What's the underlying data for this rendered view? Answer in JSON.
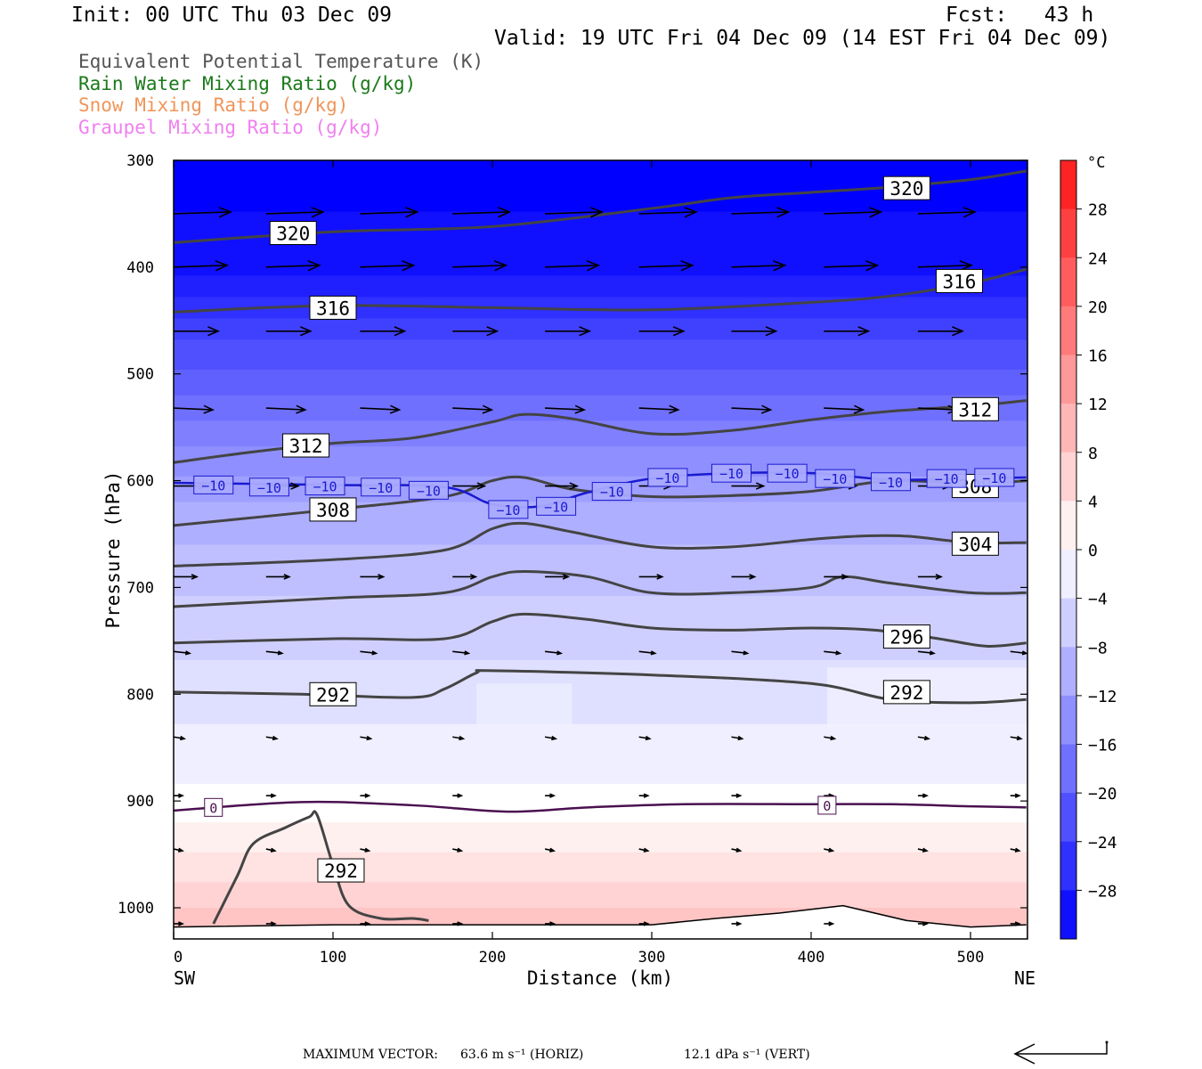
{
  "header": {
    "init": "Init: 00 UTC Thu 03 Dec 09",
    "fcst": "Fcst:   43 h",
    "valid": "Valid: 19 UTC Fri 04 Dec 09 (14 EST Fri 04 Dec 09)"
  },
  "legend": [
    {
      "label": "Equivalent Potential Temperature (K)",
      "color": "#555555"
    },
    {
      "label": "Rain Water Mixing Ratio (g/kg)",
      "color": "#1a7a1a"
    },
    {
      "label": "Snow Mixing Ratio (g/kg)",
      "color": "#f0955a"
    },
    {
      "label": "Graupel Mixing Ratio (g/kg)",
      "color": "#f080f0"
    }
  ],
  "footer": {
    "max_label": "MAXIMUM VECTOR:",
    "horiz": "63.6 m s⁻¹ (HORIZ)",
    "vert": "12.1 dPa s⁻¹ (VERT)"
  },
  "chart_data": {
    "type": "heatmap",
    "title": "",
    "xlabel": "Distance (km)",
    "ylabel": "Pressure (hPa)",
    "xlim": [
      0,
      535
    ],
    "ylim": [
      300,
      1030
    ],
    "x_ticks": [
      0,
      100,
      200,
      300,
      400,
      500
    ],
    "y_ticks": [
      300,
      400,
      500,
      600,
      700,
      800,
      900,
      1000
    ],
    "x_end_labels": {
      "left": "SW",
      "right": "NE"
    },
    "colorbar": {
      "unit": "°C",
      "ticks": [
        28,
        24,
        20,
        16,
        12,
        8,
        4,
        0,
        -4,
        -8,
        -12,
        -16,
        -20,
        -24,
        -28
      ],
      "tick_labels": [
        "28",
        "24",
        "20",
        "16",
        "12",
        "8",
        "4",
        "0",
        "−4",
        "−8",
        "−12",
        "−16",
        "−20",
        "−24",
        "−28"
      ],
      "range": [
        -32,
        32
      ],
      "step": 4
    },
    "temperature_field": [
      {
        "p": 300,
        "t": -32
      },
      {
        "p": 400,
        "t": -30
      },
      {
        "p": 430,
        "t": -27
      },
      {
        "p": 470,
        "t": -23
      },
      {
        "p": 520,
        "t": -19
      },
      {
        "p": 570,
        "t": -15
      },
      {
        "p": 620,
        "t": -11
      },
      {
        "p": 680,
        "t": -8
      },
      {
        "p": 740,
        "t": -6
      },
      {
        "p": 800,
        "t": -4
      },
      {
        "p": 860,
        "t": -2
      },
      {
        "p": 905,
        "t": 0
      },
      {
        "p": 950,
        "t": 3
      },
      {
        "p": 1000,
        "t": 7
      },
      {
        "p": 1030,
        "t": 9
      }
    ],
    "theta_e_contours": [
      {
        "value": 320,
        "x": [
          0,
          100,
          200,
          300,
          350,
          400,
          450,
          500,
          535
        ],
        "p": [
          377,
          367,
          362,
          345,
          335,
          330,
          325,
          318,
          310
        ]
      },
      {
        "value": 316,
        "x": [
          0,
          100,
          200,
          300,
          400,
          450,
          500,
          535
        ],
        "p": [
          442,
          436,
          438,
          440,
          433,
          427,
          415,
          402
        ]
      },
      {
        "value": 312,
        "x": [
          0,
          50,
          100,
          150,
          200,
          220,
          250,
          300,
          350,
          400,
          450,
          500,
          535
        ],
        "p": [
          583,
          573,
          565,
          560,
          545,
          538,
          542,
          556,
          553,
          543,
          535,
          530,
          525
        ]
      },
      {
        "value": 308,
        "x": [
          0,
          100,
          170,
          200,
          220,
          250,
          300,
          350,
          400,
          450,
          500,
          535
        ],
        "p": [
          642,
          627,
          615,
          600,
          597,
          608,
          615,
          614,
          610,
          600,
          603,
          600
        ]
      },
      {
        "value": 304,
        "x": [
          0,
          100,
          170,
          200,
          220,
          250,
          300,
          350,
          400,
          430,
          460,
          500,
          535
        ],
        "p": [
          680,
          674,
          665,
          645,
          640,
          648,
          662,
          662,
          655,
          652,
          652,
          658,
          658
        ]
      },
      {
        "value": 300,
        "x": [
          0,
          100,
          170,
          200,
          220,
          260,
          300,
          350,
          400,
          420,
          450,
          500,
          535
        ],
        "p": [
          718,
          710,
          705,
          690,
          685,
          690,
          705,
          705,
          700,
          690,
          696,
          705,
          705
        ]
      },
      {
        "value": 296,
        "x": [
          0,
          100,
          170,
          200,
          220,
          260,
          300,
          350,
          400,
          440,
          480,
          510,
          535
        ],
        "p": [
          752,
          748,
          748,
          732,
          725,
          730,
          738,
          740,
          738,
          740,
          748,
          755,
          752
        ]
      },
      {
        "value": 292,
        "x": [
          0,
          80,
          150,
          170,
          190,
          200,
          300,
          400,
          450,
          500,
          535
        ],
        "p": [
          798,
          800,
          803,
          795,
          780,
          778,
          782,
          790,
          805,
          808,
          805
        ]
      },
      {
        "value": 292,
        "x": [
          25,
          40,
          50,
          70,
          85,
          90,
          100,
          110,
          130,
          150,
          160
        ],
        "p": [
          1015,
          970,
          940,
          925,
          915,
          913,
          960,
          998,
          1010,
          1010,
          1012
        ]
      }
    ],
    "temperature_labels": [
      {
        "value": -10,
        "x": 25,
        "p": 604
      },
      {
        "value": -10,
        "x": 60,
        "p": 606
      },
      {
        "value": -10,
        "x": 95,
        "p": 605
      },
      {
        "value": -10,
        "x": 130,
        "p": 606
      },
      {
        "value": -10,
        "x": 160,
        "p": 609
      },
      {
        "value": -10,
        "x": 210,
        "p": 627
      },
      {
        "value": -10,
        "x": 240,
        "p": 624
      },
      {
        "value": -10,
        "x": 275,
        "p": 610
      },
      {
        "value": -10,
        "x": 310,
        "p": 597
      },
      {
        "value": -10,
        "x": 350,
        "p": 593
      },
      {
        "value": -10,
        "x": 385,
        "p": 593
      },
      {
        "value": -10,
        "x": 415,
        "p": 598
      },
      {
        "value": -10,
        "x": 450,
        "p": 601
      },
      {
        "value": -10,
        "x": 485,
        "p": 598
      },
      {
        "value": -10,
        "x": 515,
        "p": 597
      },
      {
        "value": 0,
        "x": 25,
        "p": 906
      },
      {
        "value": 0,
        "x": 410,
        "p": 904
      }
    ],
    "theta_e_labels": [
      {
        "value": 320,
        "x": 75,
        "p": 368
      },
      {
        "value": 320,
        "x": 460,
        "p": 326
      },
      {
        "value": 316,
        "x": 100,
        "p": 438
      },
      {
        "value": 316,
        "x": 493,
        "p": 413
      },
      {
        "value": 312,
        "x": 83,
        "p": 567
      },
      {
        "value": 312,
        "x": 503,
        "p": 533
      },
      {
        "value": 308,
        "x": 100,
        "p": 627
      },
      {
        "value": 308,
        "x": 503,
        "p": 605
      },
      {
        "value": 304,
        "x": 503,
        "p": 659
      },
      {
        "value": 296,
        "x": 460,
        "p": 746
      },
      {
        "value": 292,
        "x": 100,
        "p": 800
      },
      {
        "value": 292,
        "x": 460,
        "p": 798
      },
      {
        "value": 292,
        "x": 105,
        "p": 965
      }
    ],
    "wind_vectors": [
      {
        "p": 350,
        "xs": [
          0,
          58,
          117,
          175,
          233,
          292,
          350,
          408,
          467,
          525
        ],
        "dx": 32,
        "dy": -1
      },
      {
        "p": 400,
        "xs": [
          0,
          58,
          117,
          175,
          233,
          292,
          350,
          408,
          467,
          525
        ],
        "dx": 30,
        "dy": -1
      },
      {
        "p": 460,
        "xs": [
          0,
          58,
          117,
          175,
          233,
          292,
          350,
          408,
          467,
          525
        ],
        "dx": 25,
        "dy": 0
      },
      {
        "p": 532,
        "xs": [
          0,
          58,
          117,
          175,
          233,
          292,
          350,
          408,
          467,
          525
        ],
        "dx": 22,
        "dy": 1
      },
      {
        "p": 605,
        "xs": [
          0,
          58,
          117,
          175,
          233,
          292,
          350,
          408,
          467,
          525
        ],
        "dx": 18,
        "dy": 0
      },
      {
        "p": 690,
        "xs": [
          0,
          58,
          117,
          175,
          233,
          292,
          350,
          408,
          467,
          525
        ],
        "dx": 13,
        "dy": 0
      },
      {
        "p": 760,
        "xs": [
          0,
          58,
          117,
          175,
          233,
          292,
          350,
          408,
          467,
          525
        ],
        "dx": 9,
        "dy": 1
      },
      {
        "p": 840,
        "xs": [
          0,
          58,
          117,
          175,
          233,
          292,
          350,
          408,
          467,
          525
        ],
        "dx": 6,
        "dy": 1
      },
      {
        "p": 895,
        "xs": [
          0,
          58,
          117,
          175,
          233,
          292,
          350,
          408,
          467,
          525
        ],
        "dx": 5,
        "dy": 0
      },
      {
        "p": 945,
        "xs": [
          0,
          58,
          117,
          175,
          233,
          292,
          350,
          408,
          467,
          525
        ],
        "dx": 5,
        "dy": 1
      },
      {
        "p": 1015,
        "xs": [
          0,
          58,
          117,
          175,
          233,
          292,
          350,
          408,
          467,
          525
        ],
        "dx": 5,
        "dy": 0
      }
    ],
    "ground": {
      "x": [
        0,
        100,
        200,
        300,
        340,
        380,
        420,
        460,
        500,
        535
      ],
      "p": [
        1018,
        1016,
        1016,
        1016,
        1010,
        1005,
        998,
        1012,
        1018,
        1016
      ]
    }
  }
}
